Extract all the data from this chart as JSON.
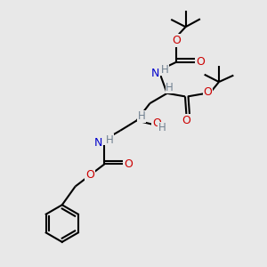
{
  "bg_color": "#e8e8e8",
  "bond_color": "#000000",
  "oxygen_color": "#cc0000",
  "nitrogen_color": "#0000cc",
  "hydrogen_color": "#708090",
  "bond_width": 1.5,
  "fig_size": [
    3.0,
    3.0
  ],
  "dpi": 100,
  "xlim": [
    0,
    10
  ],
  "ylim": [
    0,
    10
  ]
}
